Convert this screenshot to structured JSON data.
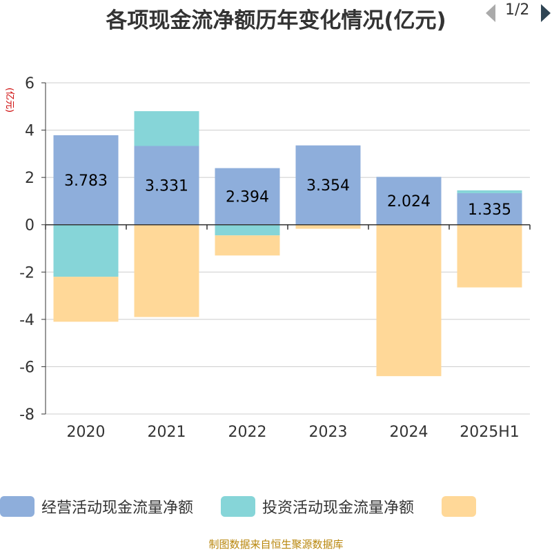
{
  "chart_data": {
    "type": "bar",
    "stacked": true,
    "title": "各项现金流净额历年变化情况(亿元)",
    "unit_label": "(亿元)",
    "categories": [
      "2020",
      "2021",
      "2022",
      "2023",
      "2024",
      "2025H1"
    ],
    "ylim": [
      -8,
      6
    ],
    "yticks": [
      6,
      4,
      2,
      0,
      -2,
      -4,
      -6,
      -8
    ],
    "grid": true,
    "legend_position": "bottom",
    "series": [
      {
        "name": "经营活动现金流量净额",
        "color": "#8eaedb",
        "values": [
          3.783,
          3.331,
          2.394,
          3.354,
          2.024,
          1.335
        ],
        "show_labels": true
      },
      {
        "name": "投资活动现金流量净额",
        "color": "#86d5d8",
        "values": [
          -2.2,
          1.47,
          -0.45,
          -0.02,
          0.0,
          0.12
        ],
        "show_labels": false
      },
      {
        "name": "",
        "color": "#ffd898",
        "values": [
          -1.9,
          -3.9,
          -0.85,
          -0.15,
          -6.4,
          -2.65
        ],
        "show_labels": false
      }
    ]
  },
  "legend_pager": {
    "page": "1/2"
  },
  "source_note": "制图数据来自恒生聚源数据库"
}
